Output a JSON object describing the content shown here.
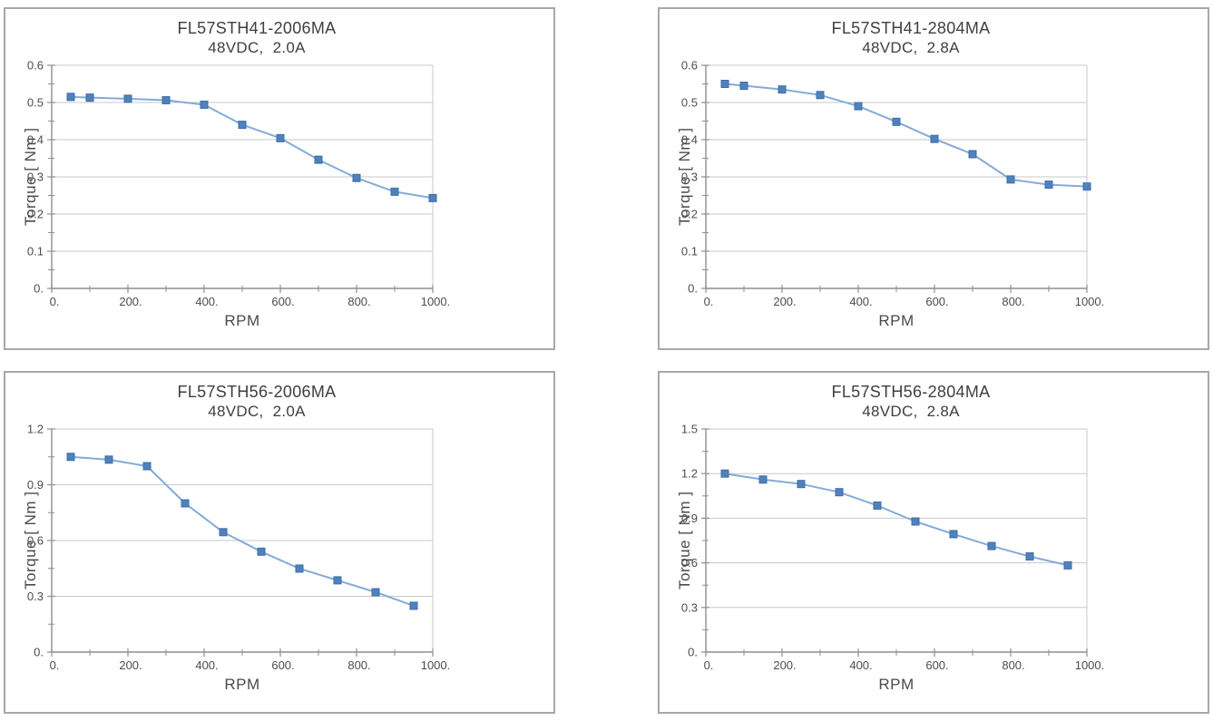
{
  "colors": {
    "marker": "#4f81bd",
    "line": "#84abd8",
    "grid": "#c9c9c9",
    "axis": "#8f8f8f",
    "text": "#4a4a4a",
    "panel_border": "#a8a8ab"
  },
  "chart_data": [
    {
      "type": "line",
      "title": "FL57STH41-2006MA",
      "subtitle": "48VDC,  2.0A",
      "xlabel": "RPM",
      "ylabel": "Torque [ Nm ]",
      "legend": "none",
      "grid": "horizontal-major",
      "x": [
        50,
        100,
        200,
        300,
        400,
        500,
        600,
        700,
        800,
        900,
        1000
      ],
      "y": [
        0.515,
        0.513,
        0.51,
        0.506,
        0.494,
        0.44,
        0.404,
        0.346,
        0.297,
        0.26,
        0.243
      ],
      "xlim": [
        0,
        1000
      ],
      "ylim": [
        0,
        0.6
      ],
      "xticks": {
        "major": [
          0,
          200,
          400,
          600,
          800,
          1000
        ],
        "major_labels": [
          "0.",
          "200.",
          "400.",
          "600.",
          "800.",
          "1000."
        ],
        "minor": [
          100,
          300,
          500,
          700,
          900
        ]
      },
      "yticks": {
        "major": [
          0,
          0.1,
          0.2,
          0.3,
          0.4,
          0.5,
          0.6
        ],
        "major_labels": [
          "0.",
          "0.1",
          "0.2",
          "0.3",
          "0.4",
          "0.5",
          "0.6"
        ],
        "minor": [
          0.05,
          0.15,
          0.25,
          0.35,
          0.45,
          0.55
        ]
      }
    },
    {
      "type": "line",
      "title": "FL57STH41-2804MA",
      "subtitle": "48VDC,  2.8A",
      "xlabel": "RPM",
      "ylabel": "Torque [ Nm ]",
      "legend": "none",
      "grid": "horizontal-major",
      "x": [
        50,
        100,
        200,
        300,
        400,
        500,
        600,
        700,
        800,
        900,
        1000
      ],
      "y": [
        0.55,
        0.545,
        0.535,
        0.52,
        0.49,
        0.448,
        0.402,
        0.361,
        0.293,
        0.279,
        0.274
      ],
      "xlim": [
        0,
        1000
      ],
      "ylim": [
        0,
        0.6
      ],
      "xticks": {
        "major": [
          0,
          200,
          400,
          600,
          800,
          1000
        ],
        "major_labels": [
          "0.",
          "200.",
          "400.",
          "600.",
          "800.",
          "1000."
        ],
        "minor": [
          100,
          300,
          500,
          700,
          900
        ]
      },
      "yticks": {
        "major": [
          0,
          0.1,
          0.2,
          0.3,
          0.4,
          0.5,
          0.6
        ],
        "major_labels": [
          "0.",
          "0.1",
          "0.2",
          "0.3",
          "0.4",
          "0.5",
          "0.6"
        ],
        "minor": [
          0.05,
          0.15,
          0.25,
          0.35,
          0.45,
          0.55
        ]
      }
    },
    {
      "type": "line",
      "title": "FL57STH56-2006MA",
      "subtitle": "48VDC,  2.0A",
      "xlabel": "RPM",
      "ylabel": "Torque [ Nm ]",
      "legend": "none",
      "grid": "horizontal-major",
      "x": [
        50,
        150,
        250,
        350,
        450,
        550,
        650,
        750,
        850,
        950
      ],
      "y": [
        1.05,
        1.035,
        1.0,
        0.8,
        0.645,
        0.54,
        0.449,
        0.386,
        0.322,
        0.249
      ],
      "xlim": [
        0,
        1000
      ],
      "ylim": [
        0,
        1.2
      ],
      "xticks": {
        "major": [
          0,
          200,
          400,
          600,
          800,
          1000
        ],
        "major_labels": [
          "0.",
          "200.",
          "400.",
          "600.",
          "800.",
          "1000."
        ],
        "minor": [
          100,
          300,
          500,
          700,
          900
        ]
      },
      "yticks": {
        "major": [
          0,
          0.3,
          0.6,
          0.9,
          1.2
        ],
        "major_labels": [
          "0.",
          "0.3",
          "0.6",
          "0.9",
          "1.2"
        ],
        "minor": [
          0.15,
          0.45,
          0.75,
          1.05
        ]
      }
    },
    {
      "type": "line",
      "title": "FL57STH56-2804MA",
      "subtitle": "48VDC,  2.8A",
      "xlabel": "RPM",
      "ylabel": "Torque [ Nm ]",
      "legend": "none",
      "grid": "horizontal-major",
      "x": [
        50,
        150,
        250,
        350,
        450,
        550,
        650,
        750,
        850,
        950
      ],
      "y": [
        1.2,
        1.16,
        1.13,
        1.075,
        0.985,
        0.878,
        0.793,
        0.713,
        0.643,
        0.583
      ],
      "xlim": [
        0,
        1000
      ],
      "ylim": [
        0,
        1.5
      ],
      "xticks": {
        "major": [
          0,
          200,
          400,
          600,
          800,
          1000
        ],
        "major_labels": [
          "0.",
          "200.",
          "400.",
          "600.",
          "800.",
          "1000."
        ],
        "minor": [
          100,
          300,
          500,
          700,
          900
        ]
      },
      "yticks": {
        "major": [
          0,
          0.3,
          0.6,
          0.9,
          1.2,
          1.5
        ],
        "major_labels": [
          "0.",
          "0.3",
          "0.6",
          "0.9",
          "1.2",
          "1.5"
        ],
        "minor": [
          0.15,
          0.45,
          0.75,
          1.05,
          1.35
        ]
      }
    }
  ]
}
